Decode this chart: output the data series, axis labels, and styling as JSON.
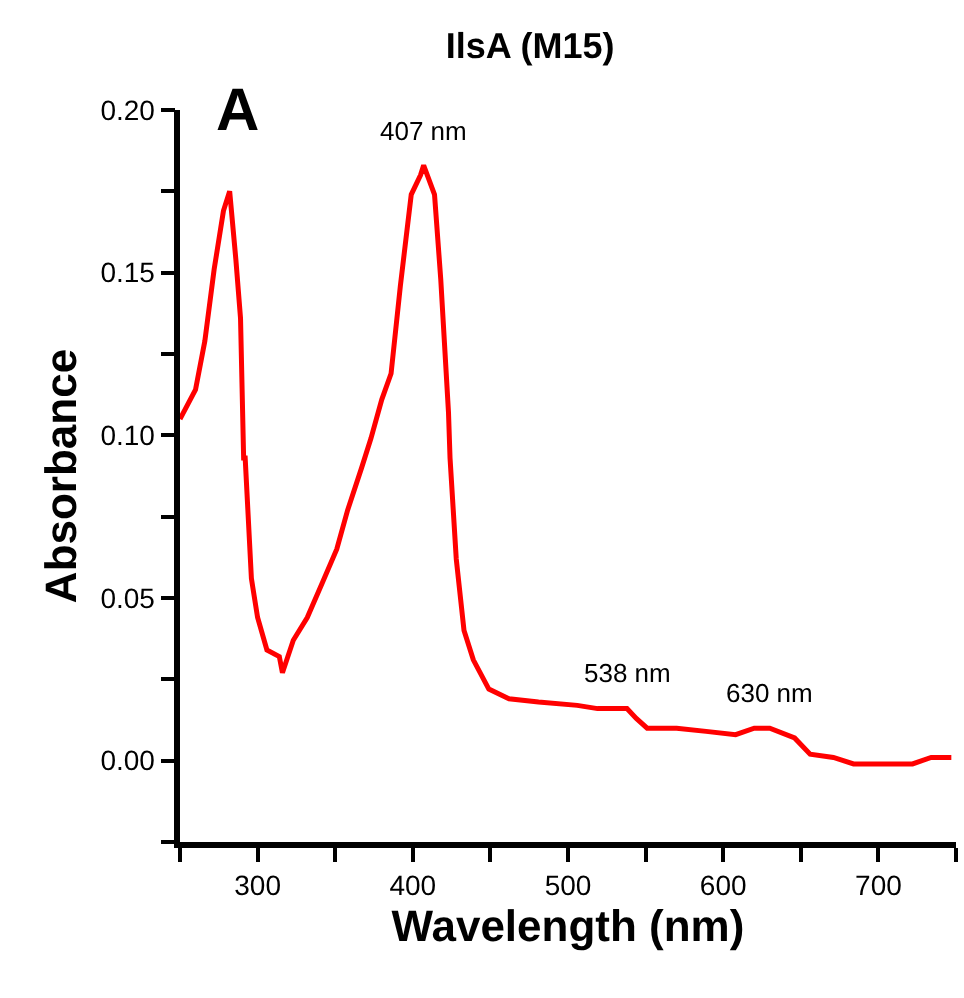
{
  "chart_data": {
    "type": "line",
    "title": "IlsA (M15)",
    "xlabel": "Wavelength (nm)",
    "ylabel": "Absorbance",
    "x": [
      250,
      260,
      266,
      272,
      278,
      282,
      286,
      289,
      291,
      292,
      296,
      300,
      306,
      314,
      316,
      323,
      332,
      342,
      351,
      358,
      367,
      373,
      380,
      386,
      392,
      399,
      405,
      407,
      414,
      418,
      423,
      424,
      428,
      433,
      439,
      449,
      462,
      481,
      506,
      519,
      538,
      544,
      551,
      570,
      589,
      608,
      620,
      630,
      646,
      656,
      671,
      684,
      703,
      722,
      734,
      747
    ],
    "series": [
      {
        "color": "#ff0000",
        "values": [
          0.105,
          0.114,
          0.129,
          0.151,
          0.169,
          0.175,
          0.154,
          0.136,
          0.093,
          0.093,
          0.056,
          0.044,
          0.034,
          0.032,
          0.027,
          0.037,
          0.044,
          0.055,
          0.065,
          0.077,
          0.09,
          0.099,
          0.111,
          0.119,
          0.146,
          0.174,
          0.18,
          0.183,
          0.174,
          0.148,
          0.107,
          0.093,
          0.062,
          0.04,
          0.031,
          0.022,
          0.019,
          0.018,
          0.017,
          0.016,
          0.016,
          0.013,
          0.01,
          0.01,
          0.009,
          0.008,
          0.01,
          0.01,
          0.007,
          0.002,
          0.001,
          -0.001,
          -0.001,
          -0.001,
          0.001,
          0.001
        ]
      }
    ],
    "xlim": [
      250,
      750
    ],
    "xticks": [
      {
        "value": 250,
        "label": null
      },
      300,
      {
        "value": 350,
        "label": null
      },
      400,
      {
        "value": 450,
        "label": null
      },
      500,
      {
        "value": 550,
        "label": null
      },
      600,
      {
        "value": 650,
        "label": null
      },
      700,
      {
        "value": 750,
        "label": null
      }
    ],
    "ylim": [
      -0.025,
      0.2
    ],
    "yticks": [
      {
        "value": -0.025,
        "label": null
      },
      {
        "value": 0,
        "label": "0.00"
      },
      {
        "value": 0.025,
        "label": null
      },
      {
        "value": 0.05,
        "label": "0.05"
      },
      {
        "value": 0.075,
        "label": null
      },
      {
        "value": 0.1,
        "label": "0.10"
      },
      {
        "value": 0.125,
        "label": null
      },
      {
        "value": 0.15,
        "label": "0.15"
      },
      {
        "value": 0.175,
        "label": null
      },
      {
        "value": 0.2,
        "label": "0.20"
      }
    ],
    "annotations": [
      "A",
      {
        "text": "407 nm",
        "x": 407,
        "y": 0.183
      },
      {
        "text": "538 nm",
        "x": 538,
        "y": 0.016
      },
      {
        "text": "630 nm",
        "x": 630,
        "y": 0.01
      }
    ],
    "marker": "none",
    "line_style": "solid"
  }
}
